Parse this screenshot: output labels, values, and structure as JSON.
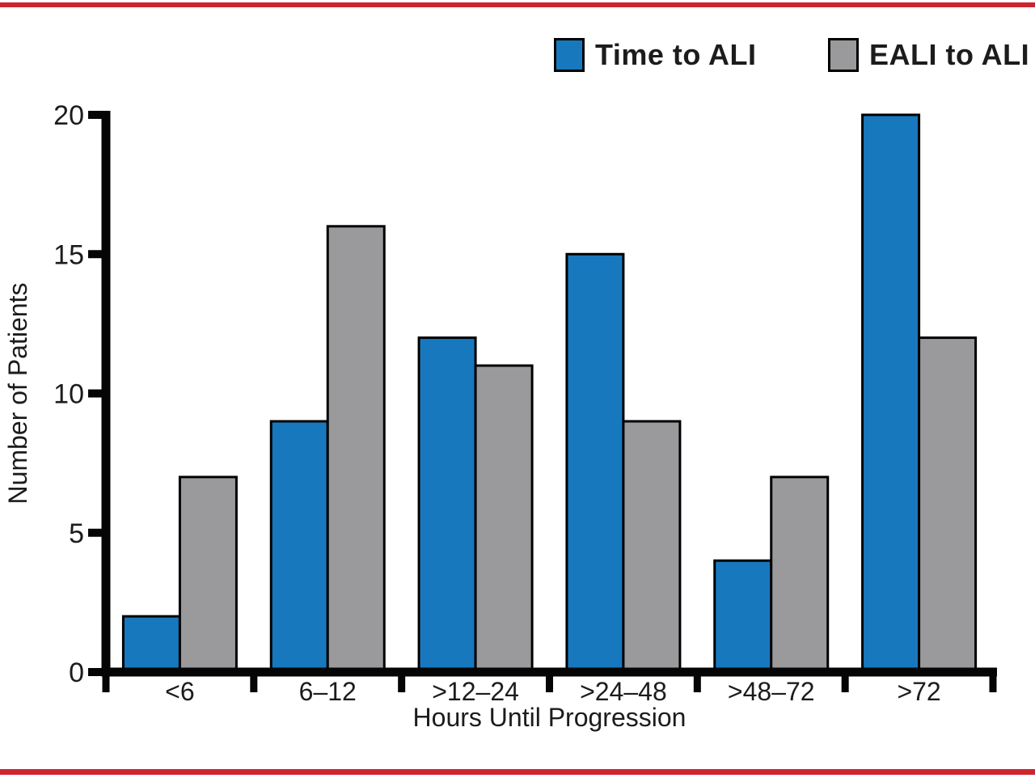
{
  "figure": {
    "background": "#FFFFFF",
    "top_rule_color": "#CE2430",
    "bottom_rule_color": "#CE2430"
  },
  "legend": {
    "items": [
      {
        "label": "Time to ALI",
        "color": "#1878BE"
      },
      {
        "label": "EALI to ALI",
        "color": "#9A9A9C"
      }
    ]
  },
  "chart_data": {
    "type": "bar",
    "title": "",
    "categories": [
      "<6",
      "6–12",
      ">12–24",
      ">24–48",
      ">48–72",
      ">72"
    ],
    "series": [
      {
        "name": "Time to ALI",
        "color": "#1878BE",
        "values": [
          2,
          9,
          12,
          15,
          4,
          20
        ]
      },
      {
        "name": "EALI to ALI",
        "color": "#9A9A9C",
        "values": [
          7,
          16,
          11,
          9,
          7,
          12
        ]
      }
    ],
    "xlabel": "Hours Until Progression",
    "ylabel": "Number of Patients",
    "ylim": [
      0,
      20
    ],
    "yticks": [
      0,
      5,
      10,
      15,
      20
    ],
    "grid": false,
    "legend_position": "top-right",
    "bar_outline_color": "#000000",
    "axis_color": "#050505",
    "text_color": "#1c1c1c"
  }
}
